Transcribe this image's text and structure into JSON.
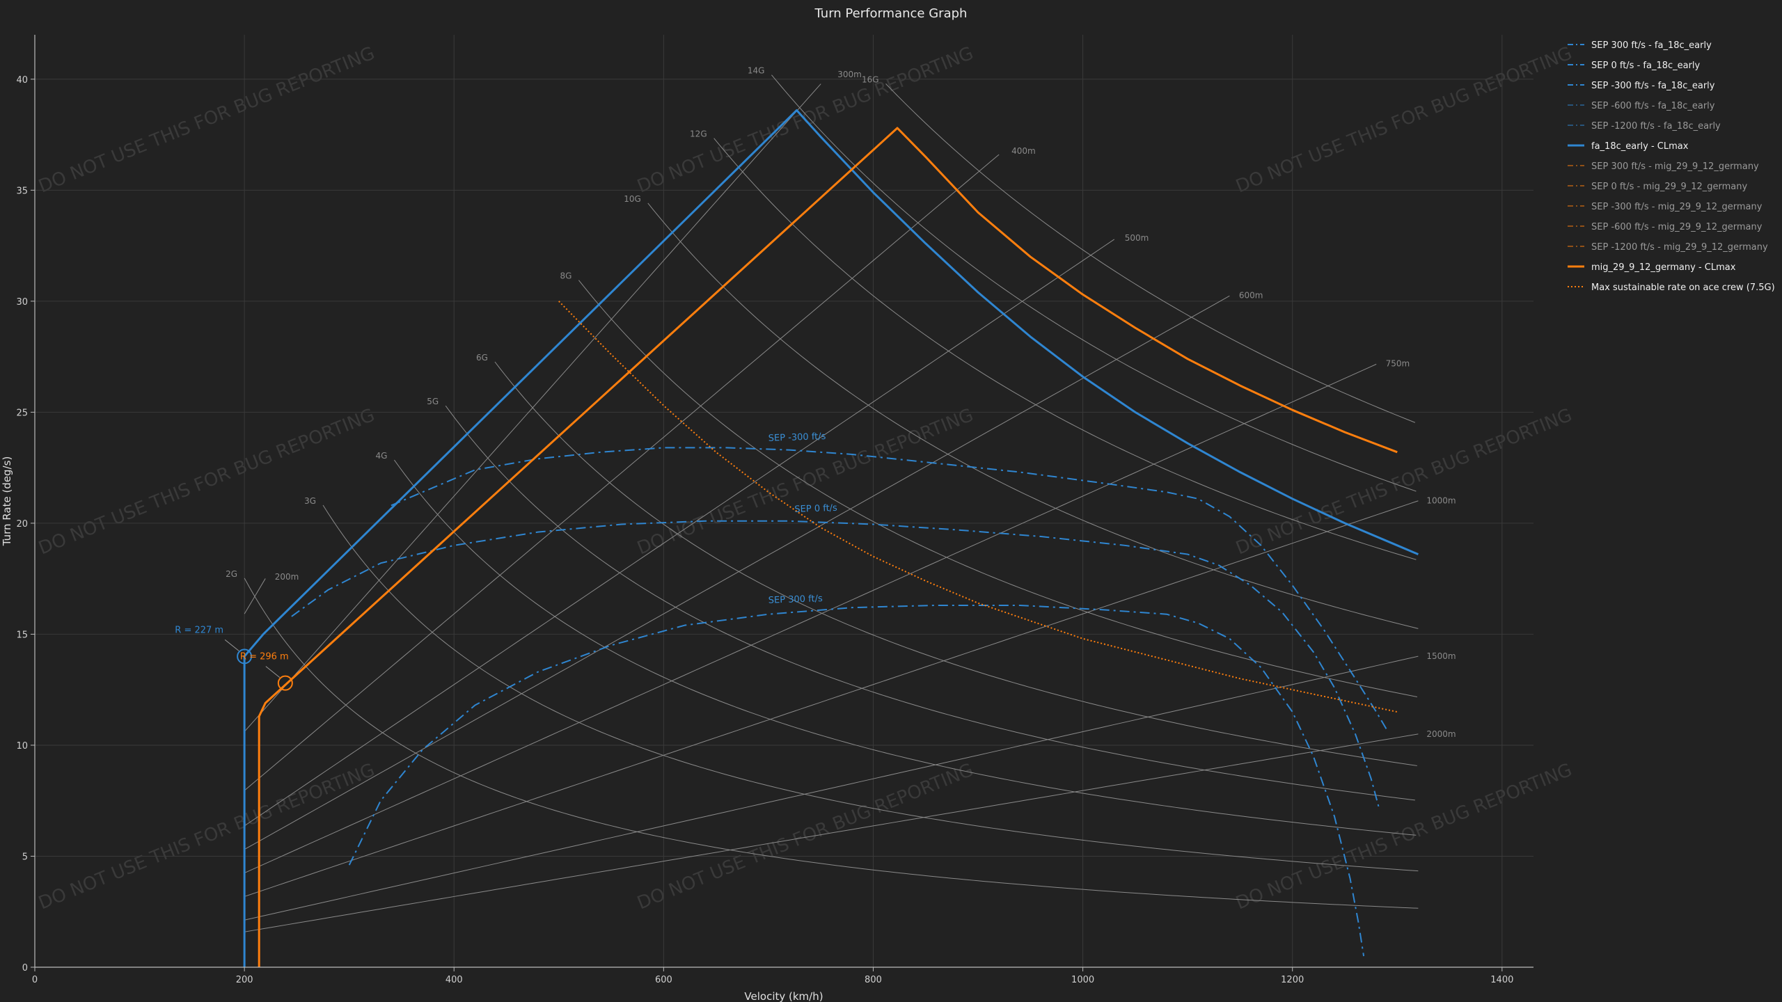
{
  "chart_data": {
    "type": "line",
    "title": "Turn Performance Graph",
    "xlabel": "Velocity (km/h)",
    "ylabel": "Turn Rate (deg/s)",
    "xlim": [
      0,
      1430
    ],
    "ylim": [
      0,
      42
    ],
    "xticks": [
      0,
      200,
      400,
      600,
      800,
      1000,
      1200,
      1400
    ],
    "yticks": [
      0,
      5,
      10,
      15,
      20,
      25,
      30,
      35,
      40
    ],
    "grid": true,
    "legend_position": "right",
    "watermark": "DO NOT USE THIS FOR BUG REPORTING",
    "g_lines": [
      {
        "label": "2G",
        "g": 2,
        "x_start": 200
      },
      {
        "label": "3G",
        "g": 3,
        "x_start": 275
      },
      {
        "label": "4G",
        "g": 4,
        "x_start": 343
      },
      {
        "label": "5G",
        "g": 5,
        "x_start": 392
      },
      {
        "label": "6G",
        "g": 6,
        "x_start": 439
      },
      {
        "label": "8G",
        "g": 8,
        "x_start": 519
      },
      {
        "label": "10G",
        "g": 10,
        "x_start": 585
      },
      {
        "label": "12G",
        "g": 12,
        "x_start": 648
      },
      {
        "label": "14G",
        "g": 14,
        "x_start": 703
      },
      {
        "label": "16G",
        "g": 16,
        "x_start": 812
      }
    ],
    "g_x_end": 1320,
    "radius_lines": [
      {
        "label": "200m",
        "r": 200,
        "x_end": 221
      },
      {
        "label": "300m",
        "r": 300,
        "x_end": 758
      },
      {
        "label": "400m",
        "r": 400,
        "x_end": 924
      },
      {
        "label": "500m",
        "r": 500,
        "x_end": 1032
      },
      {
        "label": "600m",
        "r": 600,
        "x_end": 1141
      },
      {
        "label": "750m",
        "r": 750,
        "x_end": 1281
      },
      {
        "label": "1000m",
        "r": 1000,
        "x_end": 1320
      },
      {
        "label": "1500m",
        "r": 1500,
        "x_end": 1320
      },
      {
        "label": "2000m",
        "r": 2000,
        "x_end": 1320
      }
    ],
    "series": [
      {
        "name": "SEP 300 ft/s - fa_18c_early",
        "style": "dashdot",
        "color": "#2f86d1",
        "x": [
          300,
          330,
          370,
          420,
          480,
          550,
          620,
          700,
          780,
          860,
          940,
          1020,
          1080,
          1110,
          1140,
          1170,
          1200,
          1220,
          1240,
          1255,
          1263,
          1268
        ],
        "y": [
          4.6,
          7.5,
          9.8,
          11.8,
          13.3,
          14.5,
          15.4,
          15.9,
          16.2,
          16.3,
          16.3,
          16.1,
          15.9,
          15.5,
          14.8,
          13.5,
          11.5,
          9.5,
          6.8,
          4.0,
          2.0,
          0.5
        ],
        "label_text": "SEP 300 ft/s",
        "label_x": 700,
        "label_y": 16.4
      },
      {
        "name": "SEP 0 ft/s - fa_18c_early",
        "style": "dashdot",
        "color": "#2f86d1",
        "x": [
          245,
          280,
          330,
          400,
          480,
          560,
          640,
          720,
          800,
          880,
          960,
          1040,
          1100,
          1130,
          1160,
          1190,
          1220,
          1240,
          1260,
          1275,
          1283
        ],
        "y": [
          15.8,
          17.0,
          18.2,
          19.0,
          19.6,
          19.95,
          20.1,
          20.1,
          19.95,
          19.7,
          19.4,
          19.0,
          18.6,
          18.1,
          17.2,
          16.0,
          14.2,
          12.6,
          10.5,
          8.5,
          7.1
        ],
        "label_text": "SEP 0 ft/s",
        "label_x": 725,
        "label_y": 20.5
      },
      {
        "name": "SEP -300 ft/s - fa_18c_early",
        "style": "dashdot",
        "color": "#2f86d1",
        "x": [
          340,
          380,
          420,
          480,
          540,
          600,
          660,
          720,
          780,
          860,
          940,
          1020,
          1080,
          1110,
          1140,
          1170,
          1200,
          1230,
          1260,
          1280,
          1290
        ],
        "y": [
          20.8,
          21.6,
          22.4,
          22.9,
          23.2,
          23.4,
          23.4,
          23.3,
          23.1,
          22.7,
          22.3,
          21.8,
          21.4,
          21.1,
          20.3,
          19.0,
          17.2,
          15.2,
          13.0,
          11.5,
          10.7
        ],
        "label_text": "SEP -300 ft/s",
        "label_x": 700,
        "label_y": 23.7
      },
      {
        "name": "SEP -600 ft/s - fa_18c_early",
        "style": "dashdot",
        "color": "#2f86d1",
        "x": [],
        "y": []
      },
      {
        "name": "SEP -1200 ft/s - fa_18c_early",
        "style": "dashdot",
        "color": "#2f86d1",
        "x": [],
        "y": []
      },
      {
        "name": "fa_18c_early - CLmax",
        "style": "solid",
        "color": "#2f86d1",
        "x": [
          200,
          200,
          218,
          727,
          750,
          800,
          850,
          900,
          950,
          1000,
          1050,
          1100,
          1150,
          1200,
          1250,
          1300,
          1320
        ],
        "y": [
          0,
          14.0,
          15.0,
          38.6,
          37.4,
          34.9,
          32.6,
          30.4,
          28.4,
          26.6,
          25.0,
          23.6,
          22.3,
          21.1,
          20.0,
          19.0,
          18.6
        ]
      },
      {
        "name": "SEP 300 ft/s - mig_29_9_12_germany",
        "style": "dashdot",
        "color": "#ff7f0e",
        "x": [],
        "y": []
      },
      {
        "name": "SEP 0 ft/s - mig_29_9_12_germany",
        "style": "dashdot",
        "color": "#ff7f0e",
        "x": [],
        "y": []
      },
      {
        "name": "SEP -300 ft/s - mig_29_9_12_germany",
        "style": "dashdot",
        "color": "#ff7f0e",
        "x": [],
        "y": []
      },
      {
        "name": "SEP -600 ft/s - mig_29_9_12_germany",
        "style": "dashdot",
        "color": "#ff7f0e",
        "x": [],
        "y": []
      },
      {
        "name": "SEP -1200 ft/s - mig_29_9_12_germany",
        "style": "dashdot",
        "color": "#ff7f0e",
        "x": [],
        "y": []
      },
      {
        "name": "mig_29_9_12_germany - CLmax",
        "style": "solid",
        "color": "#ff7f0e",
        "x": [
          214,
          214,
          220,
          823,
          850,
          900,
          950,
          1000,
          1050,
          1100,
          1150,
          1200,
          1250,
          1300
        ],
        "y": [
          0,
          11.3,
          11.9,
          37.8,
          36.5,
          34.0,
          32.0,
          30.3,
          28.8,
          27.4,
          26.2,
          25.1,
          24.1,
          23.2
        ]
      },
      {
        "name": "Max sustainable rate on ace crew (7.5G)",
        "style": "dotted",
        "color": "#ff7f0e",
        "x": [
          500,
          550,
          600,
          650,
          700,
          750,
          800,
          850,
          900,
          950,
          1000,
          1050,
          1100,
          1150,
          1200,
          1250,
          1300
        ],
        "y": [
          30.0,
          27.6,
          25.3,
          23.2,
          21.4,
          19.8,
          18.5,
          17.4,
          16.4,
          15.6,
          14.8,
          14.2,
          13.6,
          13.0,
          12.5,
          12.0,
          11.5
        ]
      }
    ],
    "markers": [
      {
        "label": "R = 227 m",
        "x": 200,
        "y": 14.0,
        "color": "#2f86d1"
      },
      {
        "label": "R = 296 m",
        "x": 239,
        "y": 12.8,
        "color": "#ff7f0e"
      }
    ]
  }
}
